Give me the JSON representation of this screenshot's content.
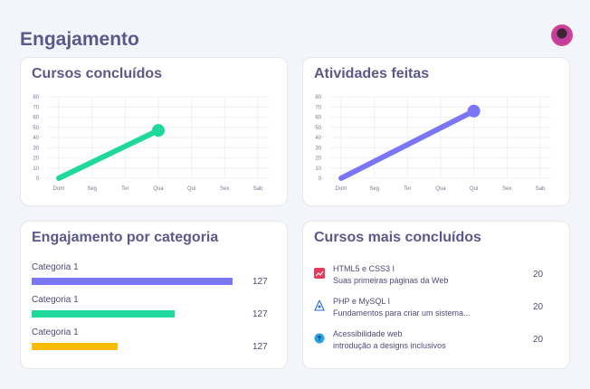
{
  "page": {
    "title": "Engajamento"
  },
  "cards": {
    "courses_completed": {
      "title": "Cursos concluídos",
      "chart_data": {
        "type": "line",
        "categories": [
          "Dom",
          "Seg",
          "Ter",
          "Qua",
          "Qui",
          "Sex",
          "Sab"
        ],
        "series": [
          {
            "values": [
              0,
              null,
              null,
              47,
              null,
              null,
              null
            ]
          }
        ],
        "ylim": [
          0,
          80
        ],
        "yticks": [
          0,
          10,
          20,
          30,
          40,
          50,
          60,
          70,
          80
        ],
        "grid": true,
        "color": "#1ed99b"
      }
    },
    "activities_done": {
      "title": "Atividades feitas",
      "chart_data": {
        "type": "line",
        "categories": [
          "Dom",
          "Seg",
          "Ter",
          "Qua",
          "Qui",
          "Sex",
          "Sab"
        ],
        "series": [
          {
            "values": [
              0,
              null,
              null,
              null,
              66,
              null,
              null
            ]
          }
        ],
        "ylim": [
          0,
          80
        ],
        "yticks": [
          0,
          10,
          20,
          30,
          40,
          50,
          60,
          70,
          80
        ],
        "grid": true,
        "color": "#7b76f5"
      }
    },
    "engagement_by_category": {
      "title": "Engajamento por categoria",
      "chart_data": {
        "type": "bar",
        "orientation": "horizontal",
        "categories": [
          "Categoria 1",
          "Categoria 1",
          "Categoria 1"
        ],
        "values": [
          127,
          127,
          127
        ],
        "fill_fraction": [
          1.0,
          0.71,
          0.43
        ],
        "colors": [
          "#7b76f5",
          "#1ed99b",
          "#fbbb07"
        ]
      }
    },
    "top_courses": {
      "title": "Cursos mais concluídos",
      "items": [
        {
          "title": "HTML5 e CSS3 I",
          "subtitle": "Suas primeiras páginas da Web",
          "count": "20",
          "icon": "html-course-icon"
        },
        {
          "title": "PHP e MySQL I",
          "subtitle": "Fundamentos para criar um sistema...",
          "count": "20",
          "icon": "php-course-icon"
        },
        {
          "title": "Acessibilidade web",
          "subtitle": "introdução a designs inclusivos",
          "count": "20",
          "icon": "accessibility-course-icon"
        }
      ]
    }
  }
}
